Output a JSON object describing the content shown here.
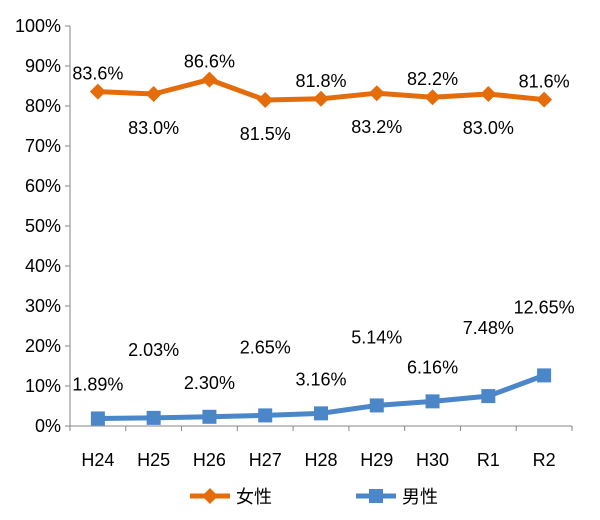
{
  "chart_data": {
    "type": "line",
    "categories": [
      "H24",
      "H25",
      "H26",
      "H27",
      "H28",
      "H29",
      "H30",
      "R1",
      "R2"
    ],
    "y_ticks": [
      "0%",
      "10%",
      "20%",
      "30%",
      "40%",
      "50%",
      "60%",
      "70%",
      "80%",
      "90%",
      "100%"
    ],
    "ylim": [
      0,
      100
    ],
    "grid": false,
    "legend_position": "bottom",
    "series": [
      {
        "name": "女性",
        "color": "#E46C0A",
        "marker": "diamond",
        "values": [
          83.6,
          83.0,
          86.6,
          81.5,
          81.8,
          83.2,
          82.2,
          83.0,
          81.6
        ],
        "labels": [
          "83.6%",
          "83.0%",
          "86.6%",
          "81.5%",
          "81.8%",
          "83.2%",
          "82.2%",
          "83.0%",
          "81.6%"
        ],
        "label_side": [
          "above",
          "below",
          "above",
          "below",
          "above",
          "below",
          "above",
          "below",
          "above"
        ]
      },
      {
        "name": "男性",
        "color": "#4A86C8",
        "marker": "square",
        "values": [
          1.89,
          2.03,
          2.3,
          2.65,
          3.16,
          5.14,
          6.16,
          7.48,
          12.65
        ],
        "labels": [
          "1.89%",
          "2.03%",
          "2.30%",
          "2.65%",
          "3.16%",
          "5.14%",
          "6.16%",
          "7.48%",
          "12.65%"
        ],
        "label_side": [
          "below",
          "above",
          "below",
          "above",
          "below",
          "above",
          "below",
          "above",
          "above"
        ]
      }
    ]
  }
}
